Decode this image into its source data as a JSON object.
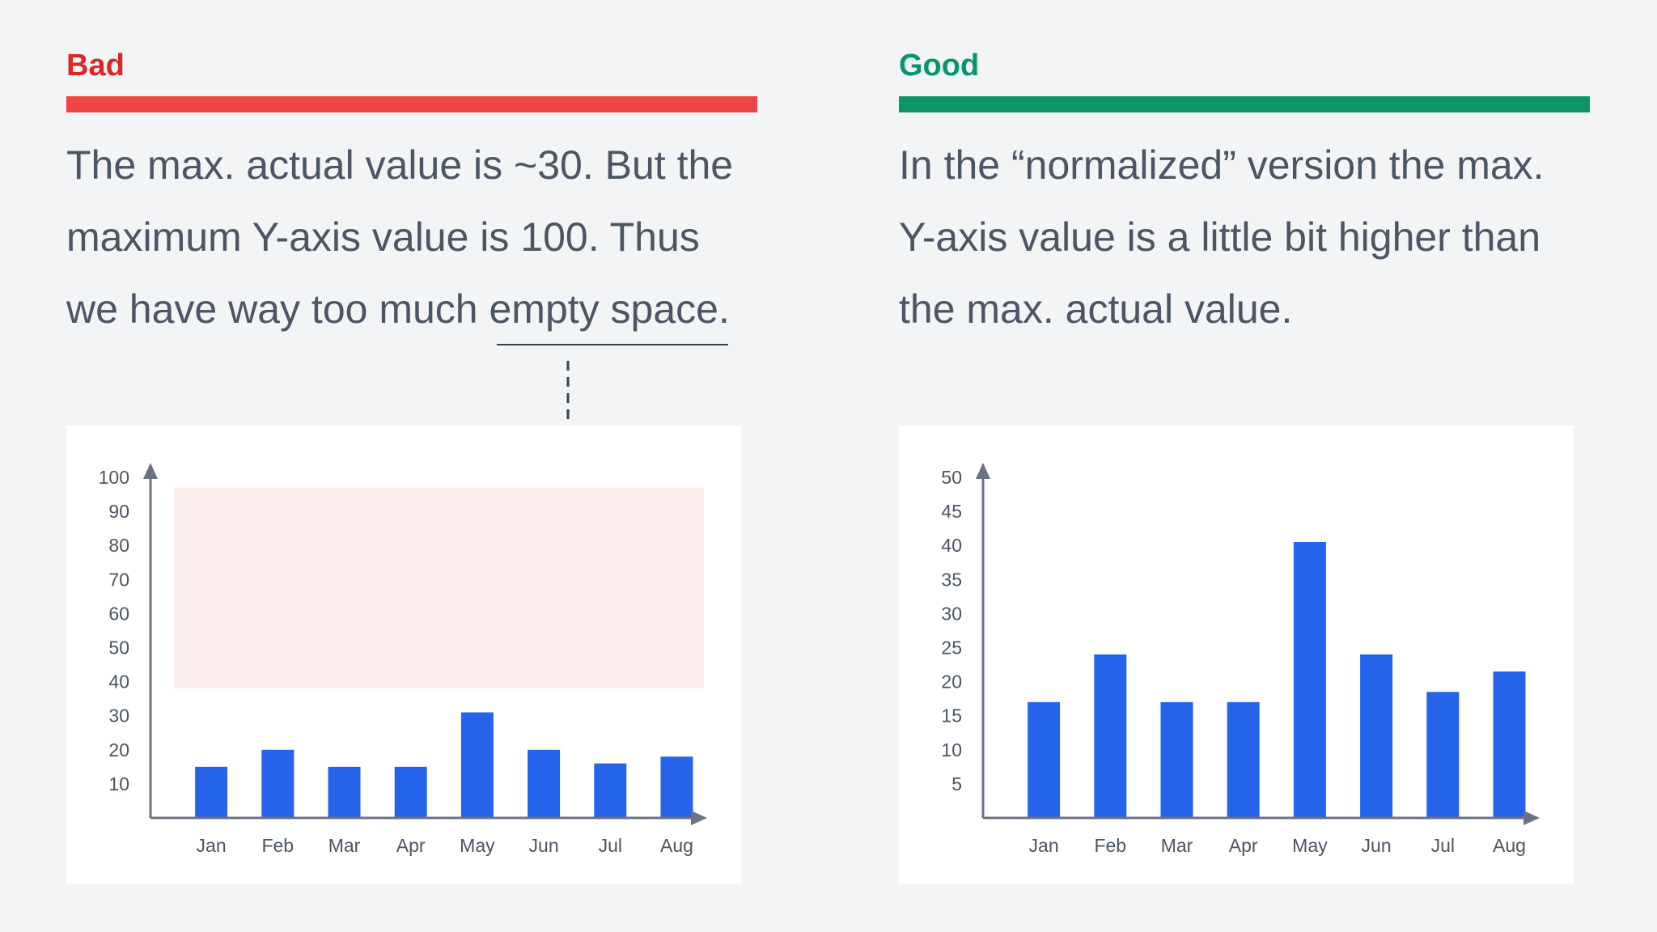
{
  "colors": {
    "bad": "#dc2626",
    "bad_rule": "#ef4444",
    "good": "#059669",
    "good_rule": "#0e9567",
    "bar": "#2563eb",
    "axis": "#6b7280",
    "empty_space": "#fdeeed",
    "text": "#4b5563"
  },
  "bad": {
    "heading": "Bad",
    "lines": [
      "The max. actual value is ~30. But the",
      "maximum Y-axis value is 100. Thus",
      "we have way too much empty space."
    ]
  },
  "good": {
    "heading": "Good",
    "lines": [
      "In the “normalized” version the max.",
      "Y-axis value is a little bit higher than",
      "the max. actual value."
    ]
  },
  "chart_data": [
    {
      "type": "bar",
      "title": "",
      "xlabel": "",
      "ylabel": "",
      "categories": [
        "Jan",
        "Feb",
        "Mar",
        "Apr",
        "May",
        "Jun",
        "Jul",
        "Aug"
      ],
      "values": [
        15,
        20,
        15,
        15,
        31,
        20,
        16,
        18
      ],
      "ylim": [
        0,
        100
      ],
      "yticks": [
        10,
        20,
        30,
        40,
        50,
        60,
        70,
        80,
        90,
        100
      ],
      "empty_space_highlight": [
        38,
        97
      ]
    },
    {
      "type": "bar",
      "title": "",
      "xlabel": "",
      "ylabel": "",
      "categories": [
        "Jan",
        "Feb",
        "Mar",
        "Apr",
        "May",
        "Jun",
        "Jul",
        "Aug"
      ],
      "values": [
        17,
        24,
        17,
        17,
        40.5,
        24,
        18.5,
        21.5
      ],
      "ylim": [
        0,
        50
      ],
      "yticks": [
        5,
        10,
        15,
        20,
        25,
        30,
        35,
        40,
        45,
        50
      ]
    }
  ]
}
